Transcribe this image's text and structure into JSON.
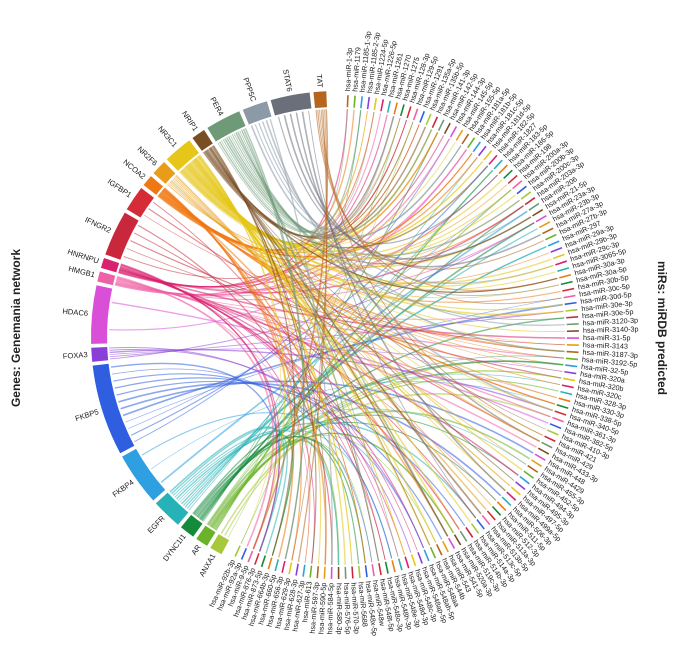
{
  "titles": {
    "left": "Genes: Genemania network",
    "right": "miRs: miRDB predicted"
  },
  "genes": [
    {
      "name": "TAT",
      "color": "#b5651d",
      "w": 1
    },
    {
      "name": "STAT6",
      "color": "#6b6f7a",
      "w": 1
    },
    {
      "name": "PPP5C",
      "color": "#8c9aa8",
      "w": 1.2
    },
    {
      "name": "PER4",
      "color": "#6f9a78",
      "w": 2.4
    },
    {
      "name": "NRIP1",
      "color": "#7a4e23",
      "w": 4.2
    },
    {
      "name": "NR3C1",
      "color": "#e6c619",
      "w": 7.2
    },
    {
      "name": "NR2F6",
      "color": "#e89d1a",
      "w": 1.1
    },
    {
      "name": "NCOA2",
      "color": "#f07813",
      "w": 4.6
    },
    {
      "name": "IGFBP1",
      "color": "#d42d38",
      "w": 0.8
    },
    {
      "name": "IFNGR2",
      "color": "#c9283c",
      "w": 0.8
    },
    {
      "name": "HNRNPU",
      "color": "#d8216f",
      "w": 3.6
    },
    {
      "name": "HMGB1",
      "color": "#ef61a6",
      "w": 2.0
    },
    {
      "name": "HDAC6",
      "color": "#d94fd8",
      "w": 0.9
    },
    {
      "name": "FOXA3",
      "color": "#8a3fd9",
      "w": 1.2
    },
    {
      "name": "FKBP5",
      "color": "#2f5fe0",
      "w": 2.3
    },
    {
      "name": "FKBP4",
      "color": "#2e9fe0",
      "w": 1.1
    },
    {
      "name": "EGFR",
      "color": "#27b2b8",
      "w": 2.8
    },
    {
      "name": "DYNC1I1",
      "color": "#148a3a",
      "w": 2.0
    },
    {
      "name": "AR",
      "color": "#6ab22a",
      "w": 3.1
    },
    {
      "name": "ANXA1",
      "color": "#a6c83a",
      "w": 1.0
    }
  ],
  "mirs": [
    "hsa-miR-1-3p",
    "hsa-miR-1179",
    "hsa-miR-1185-1-3p",
    "hsa-miR-1185-2-3p",
    "hsa-miR-1224-5p",
    "hsa-miR-1226-5p",
    "hsa-miR-1261",
    "hsa-miR-1270",
    "hsa-miR-1275",
    "hsa-miR-128-3p",
    "hsa-miR-129-5p",
    "hsa-miR-1291",
    "hsa-miR-135a-5p",
    "hsa-miR-135b-5p",
    "hsa-miR-141-3p",
    "hsa-miR-142-5p",
    "hsa-miR-144-3p",
    "hsa-miR-145-5p",
    "hsa-miR-155-5p",
    "hsa-miR-181a-5p",
    "hsa-miR-181b-5p",
    "hsa-miR-181c-5p",
    "hsa-miR-181d-5p",
    "hsa-miR-182-5p",
    "hsa-miR-1827",
    "hsa-miR-183-5p",
    "hsa-miR-186-5p",
    "hsa-miR-198",
    "hsa-miR-200a-3p",
    "hsa-miR-200b-3p",
    "hsa-miR-200c-3p",
    "hsa-miR-203a-3p",
    "hsa-miR-206",
    "hsa-miR-21-5p",
    "hsa-miR-23a-3p",
    "hsa-miR-23b-3p",
    "hsa-miR-27a-3p",
    "hsa-miR-27b-3p",
    "hsa-miR-297",
    "hsa-miR-29a-3p",
    "hsa-miR-29b-3p",
    "hsa-miR-29c-3p",
    "hsa-miR-3065-5p",
    "hsa-miR-30a-3p",
    "hsa-miR-30a-5p",
    "hsa-miR-30b-5p",
    "hsa-miR-30c-5p",
    "hsa-miR-30d-5p",
    "hsa-miR-30e-3p",
    "hsa-miR-30e-5p",
    "hsa-miR-3120-3p",
    "hsa-miR-3140-3p",
    "hsa-miR-31-5p",
    "hsa-miR-3143",
    "hsa-miR-3187-3p",
    "hsa-miR-3192-5p",
    "hsa-miR-32-5p",
    "hsa-miR-320a",
    "hsa-miR-320b",
    "hsa-miR-320c",
    "hsa-miR-328-3p",
    "hsa-miR-330-3p",
    "hsa-miR-338-5p",
    "hsa-miR-340-5p",
    "hsa-miR-361-3p",
    "hsa-miR-382-5p",
    "hsa-miR-410-3p",
    "hsa-miR-421",
    "hsa-miR-429",
    "hsa-miR-433-3p",
    "hsa-miR-448",
    "hsa-miR-4429",
    "hsa-miR-455-3p",
    "hsa-miR-452-5p",
    "hsa-miR-494-3p",
    "hsa-miR-495-3p",
    "hsa-miR-497-5p",
    "hsa-miR-499a-5p",
    "hsa-miR-506-3p",
    "hsa-miR-511-5p",
    "hsa-miR-512-3p",
    "hsa-miR-513a-3p",
    "hsa-miR-513b-5p",
    "hsa-miR-513c-5p",
    "hsa-miR-514a-3p",
    "hsa-miR-514b-3p",
    "hsa-miR-519c-3p",
    "hsa-miR-520a-3p",
    "hsa-miR-541-5p",
    "hsa-miR-543",
    "hsa-miR-544b",
    "hsa-miR-548aa",
    "hsa-miR-548ah-5p",
    "hsa-miR-548ap-5p",
    "hsa-miR-548c-3p",
    "hsa-miR-548d-3p",
    "hsa-miR-548e-3p",
    "hsa-miR-548h-3p",
    "hsa-miR-548o-3p",
    "hsa-miR-548t-5p",
    "hsa-miR-548w",
    "hsa-miR-548x-5p",
    "hsa-miR-5688",
    "hsa-miR-570-3p",
    "hsa-miR-576-5p",
    "hsa-miR-580-3p",
    "hsa-miR-584-5p",
    "hsa-miR-590-5p",
    "hsa-miR-597-3p",
    "hsa-miR-613",
    "hsa-miR-627-3p",
    "hsa-miR-628-3p",
    "hsa-miR-629-3p",
    "hsa-miR-656-3p",
    "hsa-miR-660-5p",
    "hsa-miR-664b-3p",
    "hsa-miR-873-5p",
    "hsa-miR-876-3p",
    "hsa-miR-9-5p",
    "hsa-miR-92a-3p",
    "hsa-miR-92b-3p"
  ],
  "mir_colors": [
    "#b5651d",
    "#6ab22a",
    "#2e9fe0",
    "#8a3fd9",
    "#e6c619",
    "#d8216f",
    "#27b2b8",
    "#f07813",
    "#148a3a",
    "#d42d38",
    "#ef61a6",
    "#2f5fe0",
    "#a6c83a",
    "#c9283c",
    "#6f9a78",
    "#7a4e23",
    "#d94fd8",
    "#e89d1a"
  ]
}
